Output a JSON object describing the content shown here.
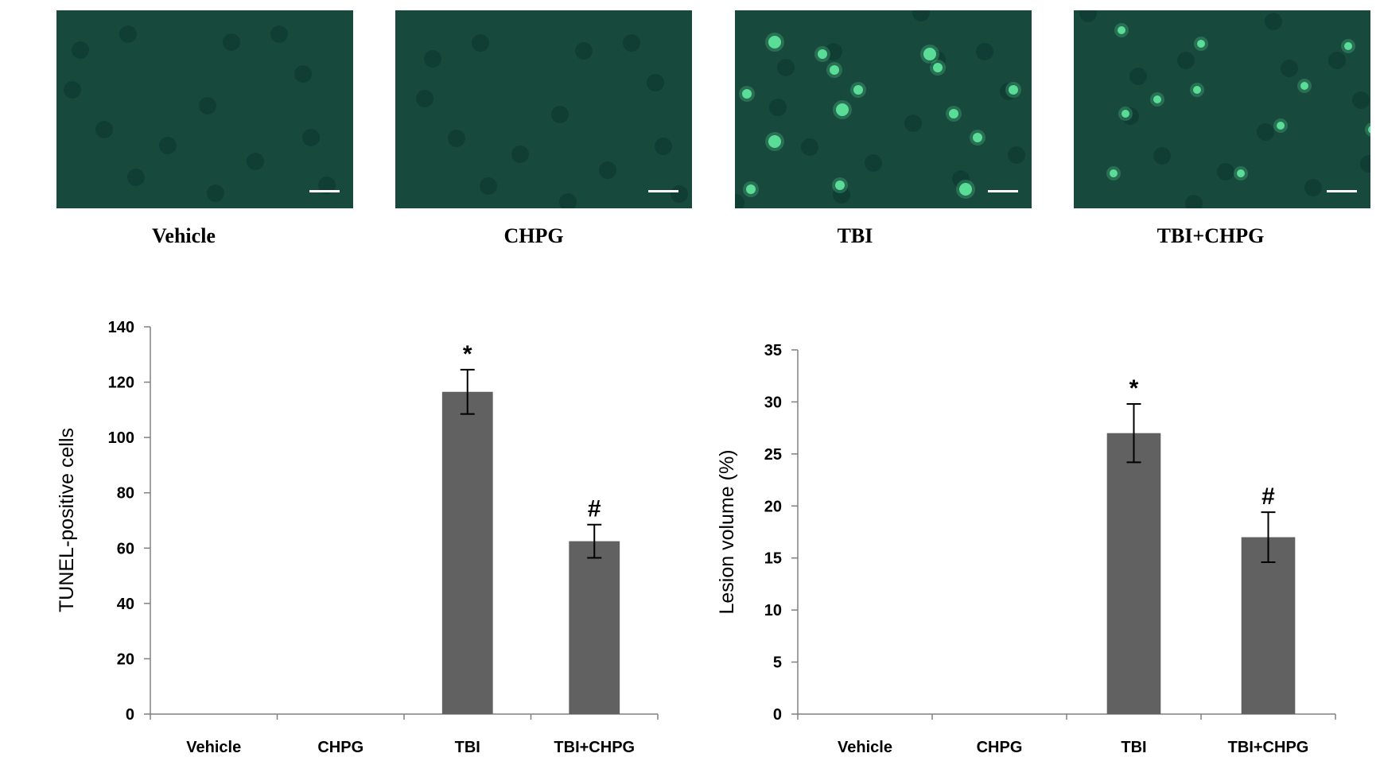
{
  "panels": [
    {
      "label": "Vehicle",
      "brightness": "low"
    },
    {
      "label": "CHPG",
      "brightness": "low"
    },
    {
      "label": "TBI",
      "brightness": "high"
    },
    {
      "label": "TBI+CHPG",
      "brightness": "medium"
    }
  ],
  "colors": {
    "tissue_background": "#17493c",
    "tunel_positive": "#5de39a",
    "bar_fill": "#616161",
    "axis": "#808080"
  },
  "chart_data": [
    {
      "type": "bar",
      "categories": [
        "Vehicle",
        "CHPG",
        "TBI",
        "TBI+CHPG"
      ],
      "values": [
        0,
        0,
        116.5,
        62.5
      ],
      "error": [
        0,
        0,
        8.0,
        6.0
      ],
      "annotations": [
        "",
        "",
        "*",
        "#"
      ],
      "ylabel": "TUNEL-positive cells",
      "ylim": [
        0,
        140
      ],
      "yticks": [
        0,
        20,
        40,
        60,
        80,
        100,
        120,
        140
      ],
      "title": "",
      "xlabel": "",
      "grid": false
    },
    {
      "type": "bar",
      "categories": [
        "Vehicle",
        "CHPG",
        "TBI",
        "TBI+CHPG"
      ],
      "values": [
        0,
        0,
        27.0,
        17.0
      ],
      "error": [
        0,
        0,
        2.8,
        2.4
      ],
      "annotations": [
        "",
        "",
        "*",
        "#"
      ],
      "ylabel": "Lesion volume (%)",
      "ylim": [
        0,
        35
      ],
      "yticks": [
        0,
        5,
        10,
        15,
        20,
        25,
        30,
        35
      ],
      "title": "",
      "xlabel": "",
      "grid": false
    }
  ]
}
